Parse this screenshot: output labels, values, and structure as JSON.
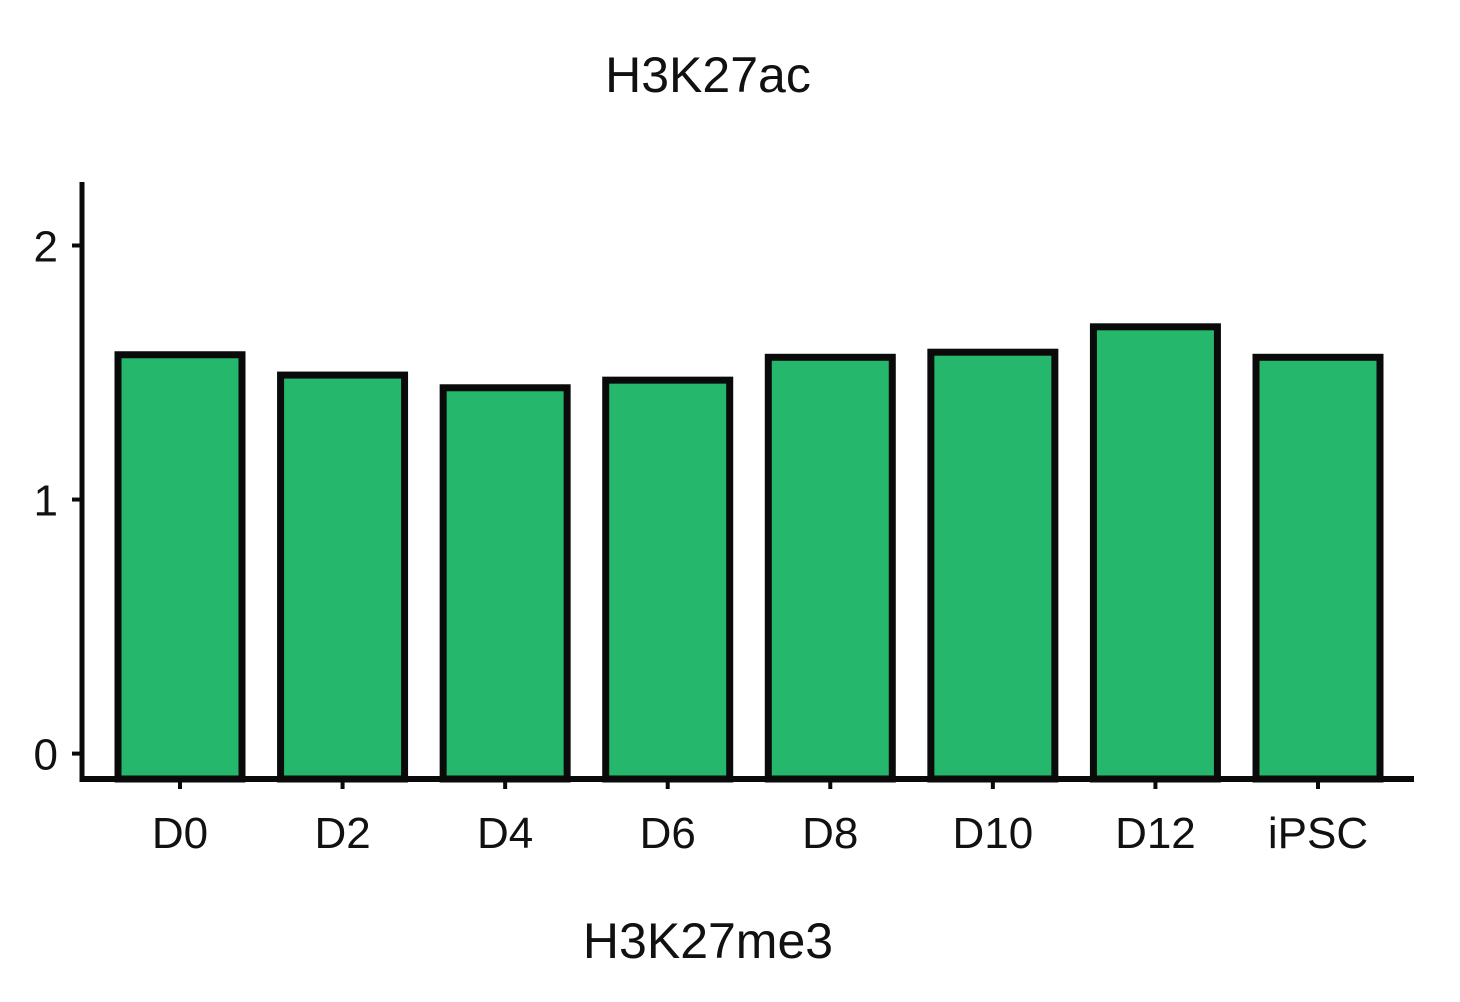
{
  "chart_data": {
    "type": "bar",
    "title": "H3K27ac",
    "xlabel": "H3K27me3",
    "ylabel": "",
    "categories": [
      "D0",
      "D2",
      "D4",
      "D6",
      "D8",
      "D10",
      "D12",
      "iPSC"
    ],
    "values": [
      1.57,
      1.49,
      1.44,
      1.47,
      1.56,
      1.58,
      1.68,
      1.56
    ],
    "ylim": [
      -0.1,
      2.25
    ],
    "yticks": [
      0,
      1,
      2
    ],
    "grid": false,
    "colors": {
      "bar_fill": "#25b76c",
      "bar_stroke": "#0a0a0a",
      "axis": "#0a0a0a"
    }
  }
}
